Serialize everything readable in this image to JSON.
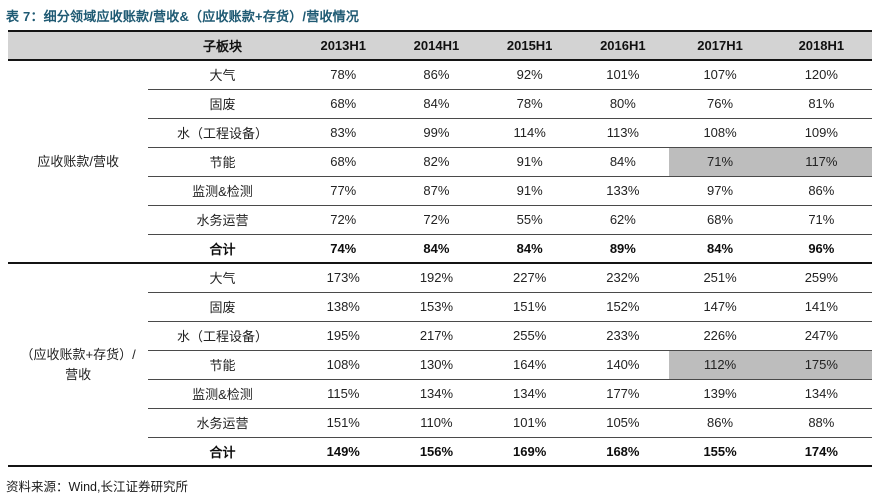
{
  "title": "表 7：细分领域应收账款/营收&（应收账款+存货）/营收情况",
  "source": "资料来源：Wind,长江证券研究所",
  "colors": {
    "title_accent": "#1f5a73",
    "header_bg": "#d3d3d3",
    "highlight_bg": "#bdbdbd",
    "border": "#141414"
  },
  "table": {
    "header": {
      "subsector": "子板块",
      "periods": [
        "2013H1",
        "2014H1",
        "2015H1",
        "2016H1",
        "2017H1",
        "2018H1"
      ]
    },
    "sections": [
      {
        "label": "应收账款/营收",
        "rows": [
          {
            "name": "大气",
            "values": [
              "78%",
              "86%",
              "92%",
              "101%",
              "107%",
              "120%"
            ]
          },
          {
            "name": "固废",
            "values": [
              "68%",
              "84%",
              "78%",
              "80%",
              "76%",
              "81%"
            ]
          },
          {
            "name": "水（工程设备）",
            "values": [
              "83%",
              "99%",
              "114%",
              "113%",
              "108%",
              "109%"
            ]
          },
          {
            "name": "节能",
            "values": [
              "68%",
              "82%",
              "91%",
              "84%",
              "71%",
              "117%"
            ],
            "highlight": [
              4,
              5
            ]
          },
          {
            "name": "监测&检测",
            "values": [
              "77%",
              "87%",
              "91%",
              "133%",
              "97%",
              "86%"
            ]
          },
          {
            "name": "水务运营",
            "values": [
              "72%",
              "72%",
              "55%",
              "62%",
              "68%",
              "71%"
            ]
          },
          {
            "name": "合计",
            "values": [
              "74%",
              "84%",
              "84%",
              "89%",
              "84%",
              "96%"
            ],
            "bold": true
          }
        ]
      },
      {
        "label": "（应收账款+存货）/营收",
        "rows": [
          {
            "name": "大气",
            "values": [
              "173%",
              "192%",
              "227%",
              "232%",
              "251%",
              "259%"
            ]
          },
          {
            "name": "固废",
            "values": [
              "138%",
              "153%",
              "151%",
              "152%",
              "147%",
              "141%"
            ]
          },
          {
            "name": "水（工程设备）",
            "values": [
              "195%",
              "217%",
              "255%",
              "233%",
              "226%",
              "247%"
            ]
          },
          {
            "name": "节能",
            "values": [
              "108%",
              "130%",
              "164%",
              "140%",
              "112%",
              "175%"
            ],
            "highlight": [
              4,
              5
            ]
          },
          {
            "name": "监测&检测",
            "values": [
              "115%",
              "134%",
              "134%",
              "177%",
              "139%",
              "134%"
            ]
          },
          {
            "name": "水务运营",
            "values": [
              "151%",
              "110%",
              "101%",
              "105%",
              "86%",
              "88%"
            ]
          },
          {
            "name": "合计",
            "values": [
              "149%",
              "156%",
              "169%",
              "168%",
              "155%",
              "174%"
            ],
            "bold": true
          }
        ]
      }
    ]
  }
}
